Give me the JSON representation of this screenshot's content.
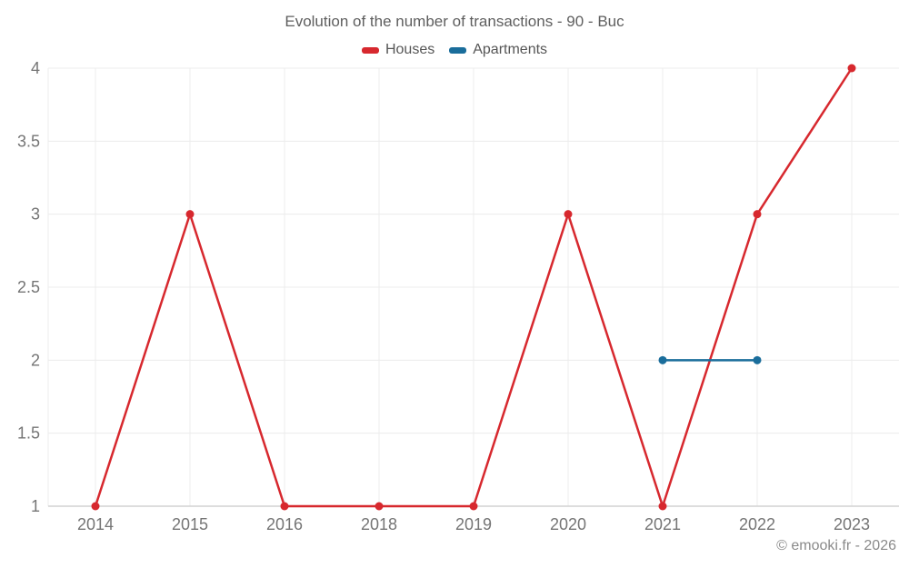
{
  "chart": {
    "title": "Evolution of the number of transactions - 90 - Buc"
  },
  "footer": {
    "text": "© emooki.fr - 2026"
  },
  "colors": {
    "houses": "#d7282e",
    "apartments": "#1a6d9b",
    "grid": "#ececec",
    "baseline": "#d2d2d2",
    "tick_text": "#757575",
    "title_text": "#5f5f5f",
    "footer_text": "#8a8a8a"
  },
  "chart_data": {
    "type": "line",
    "title": "Evolution of the number of transactions - 90 - Buc",
    "categories": [
      "2014",
      "2015",
      "2016",
      "2018",
      "2019",
      "2020",
      "2021",
      "2022",
      "2023"
    ],
    "series": [
      {
        "name": "Houses",
        "color": "#d7282e",
        "values": [
          1,
          3,
          1,
          1,
          1,
          3,
          1,
          3,
          4
        ]
      },
      {
        "name": "Apartments",
        "color": "#1a6d9b",
        "values": [
          null,
          null,
          null,
          null,
          null,
          null,
          2,
          2,
          null
        ]
      }
    ],
    "ylim": [
      1,
      4
    ],
    "ytick_step": 0.5,
    "xlabel": "",
    "ylabel": "",
    "grid": true,
    "legend_position": "top",
    "marker_radius": 4.5,
    "line_width": 2.5
  }
}
